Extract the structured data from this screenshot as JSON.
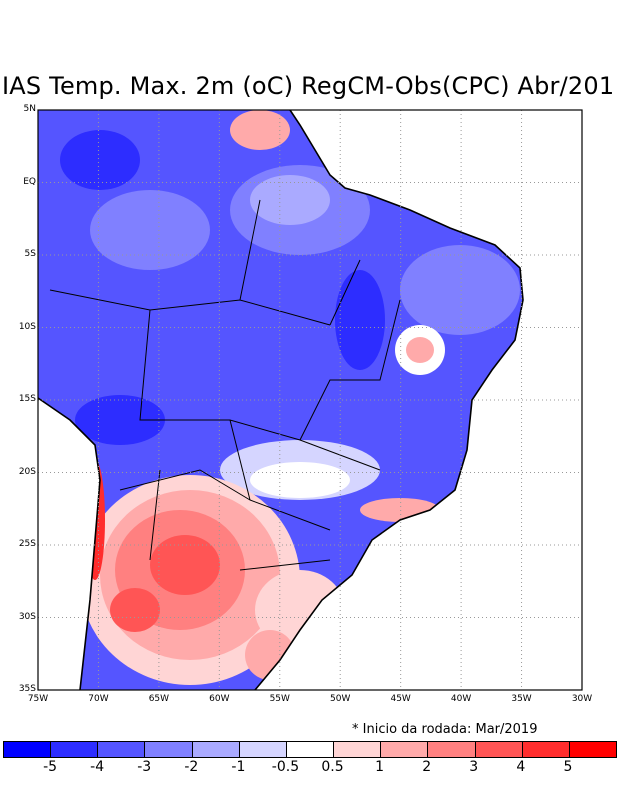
{
  "title": "IAS Temp. Max. 2m (oC) RegCM-Obs(CPC) Abr/201",
  "note": "* Inicio da rodada: Mar/2019",
  "map": {
    "lat_labels": [
      "5N",
      "EQ",
      "5S",
      "10S",
      "15S",
      "20S",
      "25S",
      "30S",
      "35S"
    ],
    "lon_labels": [
      "75W",
      "70W",
      "65W",
      "60W",
      "55W",
      "50W",
      "45W",
      "40W",
      "35W",
      "30W"
    ],
    "lon_range": [
      -75,
      -30
    ],
    "lat_range": [
      5,
      -35
    ]
  },
  "colorbar": {
    "colors": [
      "#0000ff",
      "#2d2dff",
      "#5555ff",
      "#8080ff",
      "#aaaaff",
      "#d5d5ff",
      "#ffffff",
      "#ffd5d5",
      "#ffaaaa",
      "#ff8080",
      "#ff5555",
      "#ff2d2d",
      "#ff0000"
    ],
    "labels": [
      "-5",
      "-4",
      "-3",
      "-2",
      "-1",
      "-0.5",
      "0.5",
      "1",
      "2",
      "3",
      "4",
      "5"
    ]
  }
}
